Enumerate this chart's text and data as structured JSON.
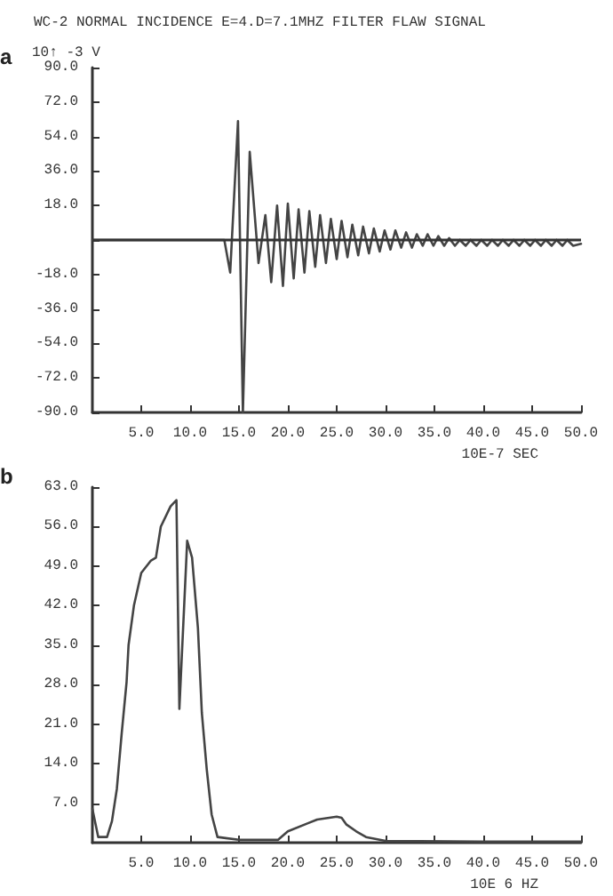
{
  "chart_data": [
    {
      "type": "line",
      "title": "WC-2 NORMAL INCIDENCE E=4.D=7.1MHZ FILTER FLAW SIGNAL",
      "ylabel": "10↑ -3 V",
      "xlabel": "10E-7 SEC",
      "annotations": [
        "a"
      ],
      "series": [
        {
          "color": "#444444",
          "x": [
            0,
            13.5,
            14.1,
            14.9,
            15.4,
            16.1,
            17.0,
            17.7,
            18.3,
            18.9,
            19.5,
            20.0,
            20.6,
            21.1,
            21.7,
            22.2,
            22.8,
            23.3,
            23.9,
            24.4,
            25.0,
            25.5,
            26.1,
            26.6,
            27.2,
            27.7,
            28.3,
            28.8,
            29.4,
            29.9,
            30.5,
            31.0,
            31.6,
            32.1,
            32.7,
            33.2,
            33.8,
            34.3,
            34.9,
            35.4,
            36.0,
            36.5,
            37.1,
            37.6,
            38.2,
            38.7,
            39.3,
            39.8,
            40.4,
            40.9,
            41.5,
            42.0,
            42.6,
            43.1,
            43.7,
            44.2,
            44.8,
            45.3,
            45.9,
            46.4,
            47.0,
            47.5,
            48.1,
            48.6,
            49.2,
            50.0
          ],
          "values": [
            0,
            0,
            -17,
            62,
            -90,
            46,
            -12,
            13,
            -22,
            18,
            -24,
            19,
            -20,
            16,
            -17,
            15,
            -14,
            13,
            -12,
            11,
            -10,
            10,
            -9,
            8,
            -8,
            7,
            -7,
            6,
            -6,
            5,
            -5,
            5,
            -4,
            4,
            -4,
            3,
            -3,
            3,
            -3,
            2,
            -3,
            1,
            -3,
            0,
            -3,
            0,
            -3,
            0,
            -3,
            0,
            -3,
            0,
            -3,
            0,
            -3,
            0,
            -3,
            0,
            -3,
            0,
            -3,
            0,
            -3,
            0,
            -3,
            -2
          ]
        }
      ],
      "xlim": [
        0,
        50
      ],
      "xticks": [
        {
          "value": 5,
          "label": "5.0"
        },
        {
          "value": 10,
          "label": "10.0"
        },
        {
          "value": 15,
          "label": "15.0"
        },
        {
          "value": 20,
          "label": "20.0"
        },
        {
          "value": 25,
          "label": "25.0"
        },
        {
          "value": 30,
          "label": "30.0"
        },
        {
          "value": 35,
          "label": "35.0"
        },
        {
          "value": 40,
          "label": "40.0"
        },
        {
          "value": 45,
          "label": "45.0"
        },
        {
          "value": 50,
          "label": "50.0"
        }
      ],
      "ylim": [
        -90,
        90
      ],
      "yticks": [
        {
          "value": -90,
          "label": "-90.0"
        },
        {
          "value": -72,
          "label": "-72.0"
        },
        {
          "value": -54,
          "label": "-54.0"
        },
        {
          "value": -36,
          "label": "-36.0"
        },
        {
          "value": -18,
          "label": "-18.0"
        },
        {
          "value": 0,
          "label": null
        },
        {
          "value": 18,
          "label": "18.0"
        },
        {
          "value": 36,
          "label": "36.0"
        },
        {
          "value": 54,
          "label": "54.0"
        },
        {
          "value": 72,
          "label": "72.0"
        },
        {
          "value": 90,
          "label": "90.0"
        }
      ],
      "ref_lines": [
        {
          "axis": "y",
          "value": 0,
          "label": null
        }
      ],
      "grid": false,
      "marker": "none",
      "line_style": "solid"
    },
    {
      "type": "line",
      "xlabel": "10E 6 HZ",
      "annotations": [
        "b"
      ],
      "series": [
        {
          "color": "#444444",
          "x": [
            0,
            0.6,
            1.5,
            2.0,
            2.5,
            3.0,
            3.5,
            3.7,
            4.25,
            5.0,
            6.0,
            6.5,
            7.0,
            8.0,
            8.6,
            8.9,
            9.7,
            10.2,
            10.8,
            11.2,
            11.7,
            12.2,
            12.8,
            15.0,
            19.0,
            20.0,
            22.0,
            23.0,
            25.0,
            25.5,
            26.0,
            27.0,
            28.0,
            30.0,
            40.0,
            50.0
          ],
          "values": [
            6,
            1,
            1,
            3.8,
            9.5,
            19.4,
            28.5,
            35,
            42,
            47.8,
            50,
            50.5,
            56,
            59.6,
            60.7,
            23.7,
            53.5,
            50.5,
            38,
            23,
            13,
            5,
            1,
            0.5,
            0.5,
            2,
            3.4,
            4.1,
            4.6,
            4.4,
            3.2,
            2,
            1,
            0.3,
            0.2,
            0.2
          ]
        }
      ],
      "xlim": [
        0,
        50
      ],
      "xticks": [
        {
          "value": 5,
          "label": "5.0"
        },
        {
          "value": 10,
          "label": "10.0"
        },
        {
          "value": 15,
          "label": "15.0"
        },
        {
          "value": 20,
          "label": "20.0"
        },
        {
          "value": 25,
          "label": "25.0"
        },
        {
          "value": 30,
          "label": "30.0"
        },
        {
          "value": 35,
          "label": "35.0"
        },
        {
          "value": 40,
          "label": "40.0"
        },
        {
          "value": 45,
          "label": "45.0"
        },
        {
          "value": 50,
          "label": "50.0"
        }
      ],
      "ylim": [
        0,
        63
      ],
      "yticks": [
        {
          "value": 7,
          "label": "7.0"
        },
        {
          "value": 14,
          "label": "14.0"
        },
        {
          "value": 21,
          "label": "21.0"
        },
        {
          "value": 28,
          "label": "28.0"
        },
        {
          "value": 35,
          "label": "35.0"
        },
        {
          "value": 42,
          "label": "42.0"
        },
        {
          "value": 49,
          "label": "49.0"
        },
        {
          "value": 56,
          "label": "56.0"
        },
        {
          "value": 63,
          "label": "63.0"
        }
      ],
      "grid": false,
      "marker": "none",
      "line_style": "solid"
    }
  ]
}
